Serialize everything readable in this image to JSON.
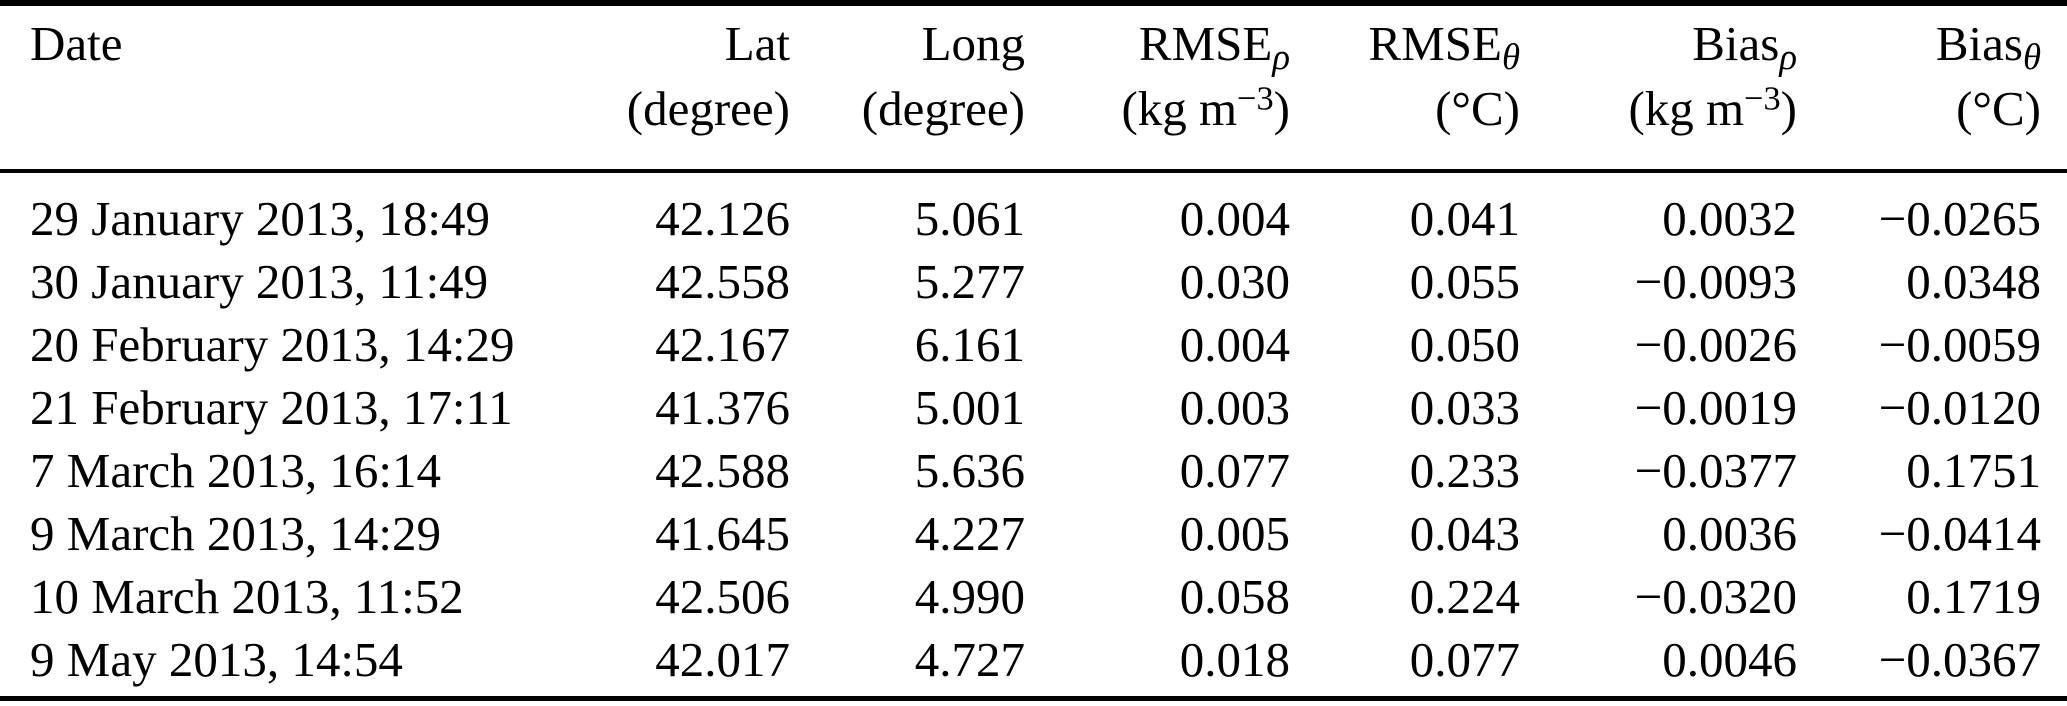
{
  "colors": {
    "text": "#000000",
    "background": "#ffffff",
    "rule": "#000000"
  },
  "table": {
    "columns": [
      {
        "label": "Date",
        "sub": "",
        "unit_pre": "",
        "unit_sup": "",
        "unit_post": ""
      },
      {
        "label": "Lat",
        "sub": "",
        "unit_pre": "(degree)",
        "unit_sup": "",
        "unit_post": ""
      },
      {
        "label": "Long",
        "sub": "",
        "unit_pre": "(degree)",
        "unit_sup": "",
        "unit_post": ""
      },
      {
        "label": "RMSE",
        "sub": "ρ",
        "unit_pre": "(kg m",
        "unit_sup": "−3",
        "unit_post": ")"
      },
      {
        "label": "RMSE",
        "sub": "θ",
        "unit_pre": "(°C)",
        "unit_sup": "",
        "unit_post": ""
      },
      {
        "label": "Bias",
        "sub": "ρ",
        "unit_pre": "(kg m",
        "unit_sup": "−3",
        "unit_post": ")"
      },
      {
        "label": "Bias",
        "sub": "θ",
        "unit_pre": "(°C)",
        "unit_sup": "",
        "unit_post": ""
      }
    ],
    "rows": [
      {
        "date": "29 January 2013, 18:49",
        "lat": "42.126",
        "long": "5.061",
        "rmse_rho": "0.004",
        "rmse_theta": "0.041",
        "bias_rho": "0.0032",
        "bias_theta": "−0.0265"
      },
      {
        "date": "30 January 2013, 11:49",
        "lat": "42.558",
        "long": "5.277",
        "rmse_rho": "0.030",
        "rmse_theta": "0.055",
        "bias_rho": "−0.0093",
        "bias_theta": "0.0348"
      },
      {
        "date": "20 February 2013, 14:29",
        "lat": "42.167",
        "long": "6.161",
        "rmse_rho": "0.004",
        "rmse_theta": "0.050",
        "bias_rho": "−0.0026",
        "bias_theta": "−0.0059"
      },
      {
        "date": "21 February 2013, 17:11",
        "lat": "41.376",
        "long": "5.001",
        "rmse_rho": "0.003",
        "rmse_theta": "0.033",
        "bias_rho": "−0.0019",
        "bias_theta": "−0.0120"
      },
      {
        "date": "7 March 2013, 16:14",
        "lat": "42.588",
        "long": "5.636",
        "rmse_rho": "0.077",
        "rmse_theta": "0.233",
        "bias_rho": "−0.0377",
        "bias_theta": "0.1751"
      },
      {
        "date": "9 March 2013, 14:29",
        "lat": "41.645",
        "long": "4.227",
        "rmse_rho": "0.005",
        "rmse_theta": "0.043",
        "bias_rho": "0.0036",
        "bias_theta": "−0.0414"
      },
      {
        "date": "10 March 2013, 11:52",
        "lat": "42.506",
        "long": "4.990",
        "rmse_rho": "0.058",
        "rmse_theta": "0.224",
        "bias_rho": "−0.0320",
        "bias_theta": "0.1719"
      },
      {
        "date": "9 May 2013, 14:54",
        "lat": "42.017",
        "long": "4.727",
        "rmse_rho": "0.018",
        "rmse_theta": "0.077",
        "bias_rho": "0.0046",
        "bias_theta": "−0.0367"
      }
    ]
  }
}
